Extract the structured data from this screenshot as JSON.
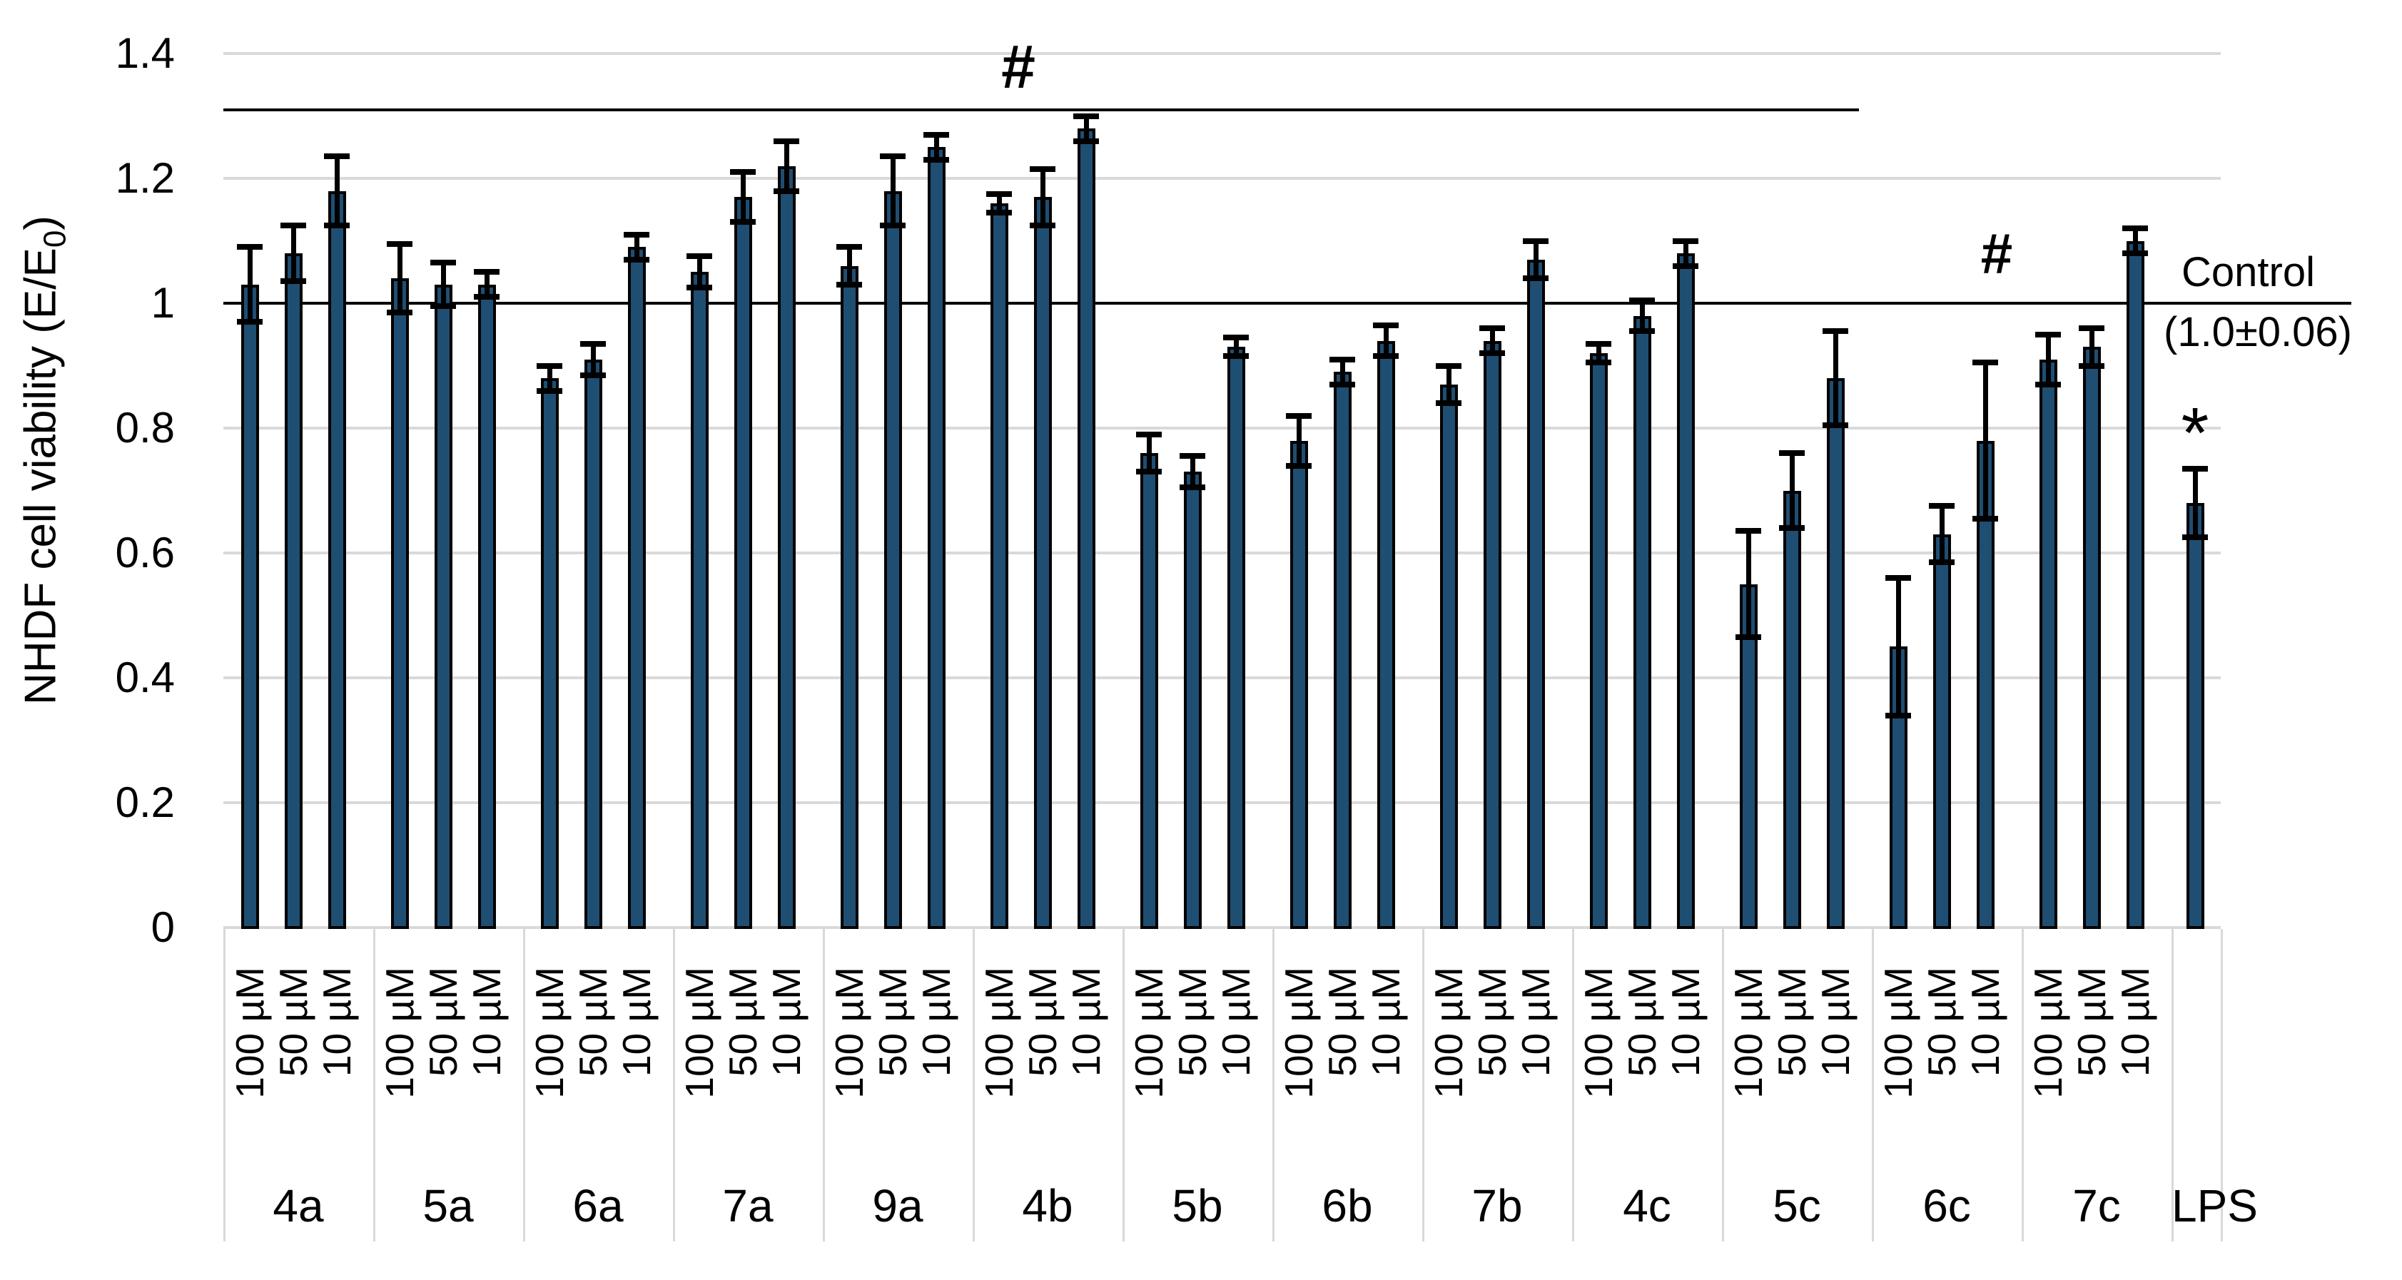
{
  "chart_data": {
    "type": "bar",
    "title": "",
    "y_axis": {
      "label_pre": "NHDF cell viability (E/E",
      "label_sub": "0",
      "label_post": ")",
      "tick_labels": [
        "0",
        "0.2",
        "0.4",
        "0.6",
        "0.8",
        "1",
        "1.2",
        "1.4"
      ],
      "tick_values": [
        0,
        0.2,
        0.4,
        0.6,
        0.8,
        1.0,
        1.2,
        1.4
      ],
      "ylim": [
        0,
        1.4
      ],
      "grid": true
    },
    "concentrations": [
      "100 µM",
      "50 µM",
      "10 µM"
    ],
    "groups": [
      {
        "label": "4a",
        "values": [
          1.03,
          1.08,
          1.18
        ],
        "errors": [
          0.06,
          0.045,
          0.055
        ]
      },
      {
        "label": "5a",
        "values": [
          1.04,
          1.03,
          1.03
        ],
        "errors": [
          0.055,
          0.035,
          0.02
        ]
      },
      {
        "label": "6a",
        "values": [
          0.88,
          0.91,
          1.09
        ],
        "errors": [
          0.02,
          0.025,
          0.02
        ]
      },
      {
        "label": "7a",
        "values": [
          1.05,
          1.17,
          1.22
        ],
        "errors": [
          0.025,
          0.04,
          0.04
        ]
      },
      {
        "label": "9a",
        "values": [
          1.06,
          1.18,
          1.25
        ],
        "errors": [
          0.03,
          0.055,
          0.02
        ]
      },
      {
        "label": "4b",
        "values": [
          1.16,
          1.17,
          1.28
        ],
        "errors": [
          0.015,
          0.045,
          0.02
        ]
      },
      {
        "label": "5b",
        "values": [
          0.76,
          0.73,
          0.93
        ],
        "errors": [
          0.03,
          0.025,
          0.015
        ]
      },
      {
        "label": "6b",
        "values": [
          0.78,
          0.89,
          0.94
        ],
        "errors": [
          0.04,
          0.02,
          0.025
        ]
      },
      {
        "label": "7b",
        "values": [
          0.87,
          0.94,
          1.07
        ],
        "errors": [
          0.03,
          0.02,
          0.03
        ]
      },
      {
        "label": "4c",
        "values": [
          0.92,
          0.98,
          1.08
        ],
        "errors": [
          0.015,
          0.025,
          0.02
        ]
      },
      {
        "label": "5c",
        "values": [
          0.55,
          0.7,
          0.88
        ],
        "errors": [
          0.085,
          0.06,
          0.075
        ]
      },
      {
        "label": "6c",
        "values": [
          0.45,
          0.63,
          0.78
        ],
        "errors": [
          0.11,
          0.045,
          0.125
        ]
      },
      {
        "label": "7c",
        "values": [
          0.91,
          0.93,
          1.1
        ],
        "errors": [
          0.04,
          0.03,
          0.02
        ]
      }
    ],
    "lps": {
      "label": "LPS",
      "value": 0.68,
      "error": 0.055
    },
    "annotations": {
      "hash_symbol": "#",
      "long_hash_line_value": 1.31,
      "right_hash_symbol": "#",
      "control_line_value": 1.0,
      "control_label_line1": "Control",
      "control_label_line2": "(1.0±0.06)",
      "lps_star": "*"
    },
    "colors": {
      "bar_fill": "#1F4E73",
      "bar_outline": "#000000",
      "gridline": "#D9D9D9",
      "annotation": "#000000"
    },
    "legend": null
  }
}
